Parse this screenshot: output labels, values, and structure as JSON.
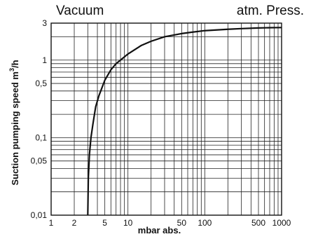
{
  "chart_data": {
    "type": "line",
    "title": "",
    "header_left": "Vacuum",
    "header_right": "atm. Press.",
    "xlabel": "mbar abs.",
    "ylabel_prefix": "Suction pumping speed m",
    "ylabel_sup": "3",
    "ylabel_suffix": "/h",
    "x_scale": "log",
    "y_scale": "log",
    "xlim": [
      1,
      1000
    ],
    "ylim": [
      0.01,
      3
    ],
    "grid": true,
    "x_ticks": [
      {
        "v": 1,
        "label": "1"
      },
      {
        "v": 2,
        "label": "2"
      },
      {
        "v": 5,
        "label": "5"
      },
      {
        "v": 10,
        "label": "10"
      },
      {
        "v": 50,
        "label": "50"
      },
      {
        "v": 100,
        "label": "100"
      },
      {
        "v": 500,
        "label": "500"
      },
      {
        "v": 1000,
        "label": "1000"
      }
    ],
    "y_ticks": [
      {
        "v": 3,
        "label": "3"
      },
      {
        "v": 1,
        "label": "1"
      },
      {
        "v": 0.5,
        "label": "0,5"
      },
      {
        "v": 0.1,
        "label": "0,1"
      },
      {
        "v": 0.05,
        "label": "0,05"
      },
      {
        "v": 0.01,
        "label": "0,01"
      }
    ],
    "series": [
      {
        "x": [
          3.0,
          3.05,
          3.15,
          3.3,
          3.5,
          3.8,
          4.2,
          5,
          6,
          7,
          8,
          10,
          15,
          20,
          30,
          50,
          70,
          100,
          200,
          300,
          500,
          700,
          1000
        ],
        "y": [
          0.01,
          0.03,
          0.06,
          0.1,
          0.15,
          0.25,
          0.35,
          0.55,
          0.75,
          0.9,
          1.0,
          1.2,
          1.55,
          1.75,
          2.0,
          2.2,
          2.3,
          2.4,
          2.5,
          2.55,
          2.6,
          2.62,
          2.63
        ]
      }
    ]
  }
}
